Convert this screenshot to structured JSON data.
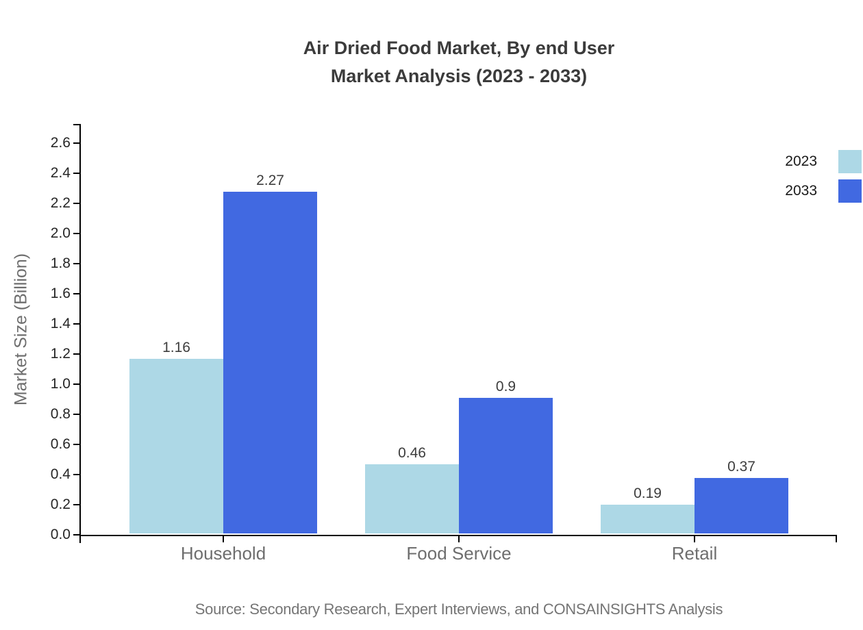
{
  "title": {
    "line1": "Air Dried Food Market, By end User",
    "line2": "Market Analysis (2023 - 2033)"
  },
  "source": "Source: Secondary Research, Expert Interviews, and CONSAINSIGHTS Analysis",
  "chart_data": {
    "type": "bar",
    "title": "Air Dried Food Market, By end User Market Analysis (2023 - 2033)",
    "categories": [
      "Household",
      "Food Service",
      "Retail"
    ],
    "series": [
      {
        "name": "2023",
        "color": "#ADD8E6",
        "values": [
          1.16,
          0.46,
          0.19
        ]
      },
      {
        "name": "2033",
        "color": "#4169E1",
        "values": [
          2.27,
          0.9,
          0.37
        ]
      }
    ],
    "xlabel": "",
    "ylabel": "Market Size (Billion)",
    "ylim": [
      0,
      2.6
    ],
    "ytick_step": 0.2,
    "ytick_format_decimals": 1,
    "grid": false,
    "legend_position": "top-right-outside",
    "bar_value_labels": true
  },
  "colors": {
    "axis": "#000000",
    "title_text": "#3b3b3b",
    "tick_label_text": "#262626",
    "category_label_text": "#6e6e6e",
    "value_label_text": "#3d3d3d",
    "muted_text": "#757575",
    "background": "#ffffff"
  }
}
